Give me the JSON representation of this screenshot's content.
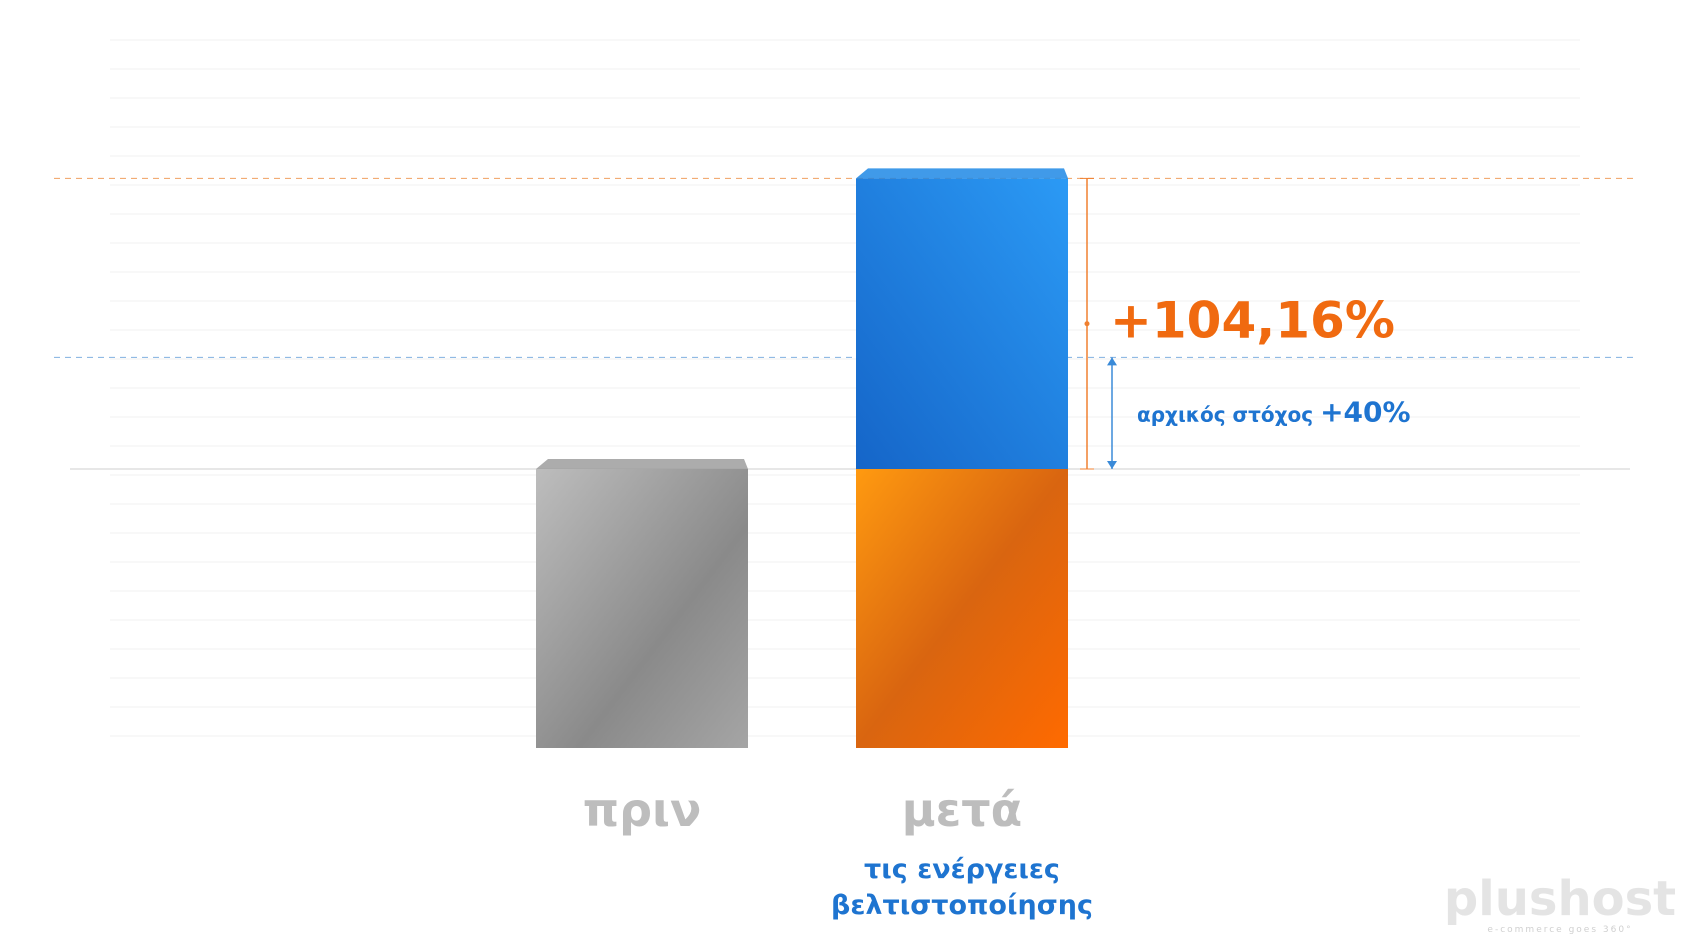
{
  "chart_data": {
    "type": "bar",
    "categories": [
      "πριν",
      "μετά"
    ],
    "category_notes": [
      null,
      [
        "τις ενέργειες",
        "βελτιστοποίησης"
      ]
    ],
    "series": [
      {
        "values": [
          100,
          100
        ],
        "colors": [
          "#9e9e9e",
          "#f57c00"
        ]
      },
      {
        "values": [
          null,
          104.16
        ],
        "color": "#1e88e5",
        "value_labels": [
          null,
          "+104,16%"
        ]
      }
    ],
    "target_label": "αρχικός στόχος",
    "target_value": 40,
    "target_value_label": "+40%"
  },
  "logo": {
    "name": "plushost",
    "tagline": "e-commerce goes 360°"
  }
}
